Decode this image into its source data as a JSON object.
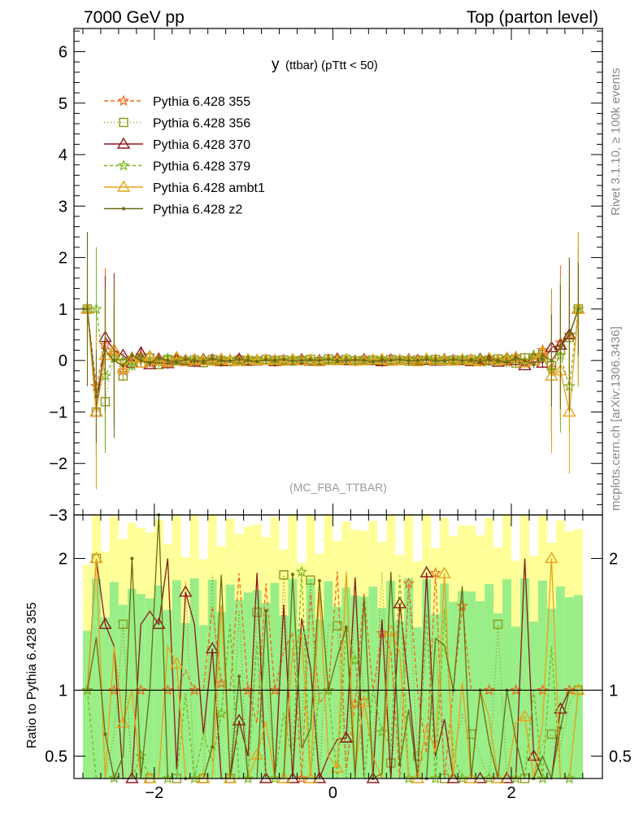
{
  "header": {
    "left_label": "7000 GeV pp",
    "right_label": "Top (parton level)"
  },
  "side_labels": {
    "rivet": "Rivet 3.1.10, ≥ 100k events",
    "mcplots": "mcplots.cern.ch [arXiv:1306.3436]"
  },
  "chart_data": [
    {
      "type": "line",
      "title": "y (ttbar) (pTtt < 50)",
      "title_main": "y",
      "title_sub": "(ttbar)  (pTtt < 50)",
      "watermark": "(MC_FBA_TTBAR)",
      "xlim": [
        -2.9,
        3.02
      ],
      "ylim": [
        -3,
        6.45
      ],
      "yticks": [
        -3,
        -2,
        -1,
        0,
        1,
        2,
        3,
        4,
        5,
        6
      ],
      "ytick_labels": [
        "−3",
        "−2",
        "−1",
        "0",
        "1",
        "2",
        "3",
        "4",
        "5",
        "6"
      ],
      "legend_position": "top-left",
      "x": [
        -2.75,
        -2.65,
        -2.55,
        -2.45,
        -2.35,
        -2.25,
        -2.15,
        -2.05,
        -1.95,
        -1.85,
        -1.75,
        -1.65,
        -1.55,
        -1.45,
        -1.35,
        -1.25,
        -1.15,
        -1.05,
        -0.95,
        -0.85,
        -0.75,
        -0.65,
        -0.55,
        -0.45,
        -0.35,
        -0.25,
        -0.15,
        -0.05,
        0.05,
        0.15,
        0.25,
        0.35,
        0.45,
        0.55,
        0.65,
        0.75,
        0.85,
        0.95,
        1.05,
        1.15,
        1.25,
        1.35,
        1.45,
        1.55,
        1.65,
        1.75,
        1.85,
        1.95,
        2.05,
        2.15,
        2.25,
        2.35,
        2.45,
        2.55,
        2.65,
        2.75
      ],
      "series": [
        {
          "name": "Pythia 6.428 355",
          "color": "#ee6a1a",
          "dash": "5,3",
          "marker": "star",
          "values": [
            1.0,
            -0.5,
            0.3,
            0.15,
            -0.2,
            0.05,
            0.1,
            -0.05,
            0.02,
            -0.03,
            0.05,
            0.0,
            -0.02,
            0.03,
            0.01,
            -0.01,
            0.02,
            0.0,
            -0.02,
            0.01,
            0.0,
            0.02,
            -0.01,
            0.0,
            0.01,
            0.0,
            -0.01,
            0.02,
            0.01,
            0.0,
            -0.01,
            0.01,
            0.02,
            0.0,
            -0.01,
            0.01,
            0.0,
            0.02,
            0.01,
            -0.01,
            0.0,
            0.02,
            0.01,
            0.03,
            -0.02,
            0.05,
            0.02,
            -0.03,
            0.08,
            -0.05,
            0.1,
            0.2,
            -0.15,
            0.35,
            0.5,
            1.0
          ]
        },
        {
          "name": "Pythia 6.428 356",
          "color": "#8a9a1a",
          "dash": "1,3",
          "marker": "square",
          "values": [
            1.0,
            -1.0,
            -0.8,
            0.1,
            -0.3,
            0.0,
            -0.05,
            0.05,
            -0.08,
            0.02,
            0.0,
            -0.02,
            0.01,
            -0.04,
            0.02,
            0.0,
            -0.02,
            0.01,
            0.0,
            -0.01,
            0.02,
            0.0,
            0.01,
            -0.01,
            0.0,
            0.02,
            -0.02,
            0.03,
            0.0,
            0.02,
            -0.01,
            0.0,
            0.01,
            -0.01,
            0.02,
            0.0,
            -0.01,
            0.01,
            0.0,
            0.02,
            -0.01,
            0.01,
            0.0,
            0.02,
            -0.01,
            0.01,
            0.03,
            0.0,
            -0.05,
            0.05,
            0.0,
            0.12,
            -0.1,
            0.2,
            0.45,
            1.0
          ]
        },
        {
          "name": "Pythia 6.428 370",
          "color": "#8b1a1a",
          "dash": "",
          "marker": "triangle",
          "values": [
            1.0,
            -1.0,
            0.45,
            0.2,
            0.1,
            -0.05,
            0.15,
            -0.08,
            0.03,
            -0.06,
            0.02,
            0.0,
            -0.03,
            0.02,
            0.01,
            -0.02,
            0.0,
            0.03,
            -0.01,
            0.0,
            0.01,
            -0.02,
            0.0,
            0.01,
            0.02,
            -0.01,
            0.0,
            0.01,
            0.03,
            0.0,
            -0.01,
            0.02,
            0.0,
            -0.02,
            0.01,
            0.0,
            0.02,
            0.0,
            0.01,
            -0.01,
            0.02,
            0.0,
            0.01,
            -0.02,
            0.03,
            0.0,
            -0.03,
            0.04,
            0.0,
            -0.1,
            0.05,
            -0.05,
            0.25,
            0.3,
            0.5,
            1.0
          ]
        },
        {
          "name": "Pythia 6.428 379",
          "color": "#7ab51e",
          "dash": "4,3",
          "marker": "star",
          "values": [
            1.0,
            1.0,
            -0.3,
            0.05,
            0.0,
            -0.1,
            0.05,
            0.0,
            -0.03,
            0.04,
            -0.02,
            0.01,
            0.0,
            0.02,
            -0.01,
            0.0,
            0.03,
            -0.01,
            0.0,
            0.02,
            0.0,
            -0.01,
            0.01,
            0.0,
            0.02,
            -0.01,
            0.0,
            0.02,
            0.0,
            0.01,
            0.0,
            -0.01,
            0.02,
            0.01,
            0.0,
            0.02,
            -0.01,
            0.0,
            0.01,
            0.03,
            0.0,
            0.01,
            0.02,
            0.0,
            0.04,
            -0.02,
            0.0,
            0.06,
            0.02,
            0.0,
            0.1,
            0.05,
            -0.2,
            0.1,
            -0.5,
            1.0
          ]
        },
        {
          "name": "Pythia 6.428 ambt1",
          "color": "#e8a21a",
          "dash": "",
          "marker": "triangle",
          "values": [
            1.0,
            -1.0,
            0.1,
            0.2,
            -0.15,
            0.05,
            -0.05,
            0.08,
            0.0,
            -0.04,
            0.06,
            -0.02,
            0.02,
            0.0,
            -0.01,
            0.03,
            0.0,
            -0.02,
            0.02,
            0.0,
            0.01,
            0.0,
            -0.01,
            0.02,
            0.0,
            0.01,
            -0.02,
            0.01,
            0.0,
            0.02,
            -0.01,
            0.0,
            0.01,
            0.02,
            -0.01,
            0.0,
            0.01,
            -0.02,
            0.03,
            0.0,
            0.01,
            -0.01,
            0.02,
            0.0,
            -0.02,
            0.04,
            0.0,
            0.02,
            0.06,
            -0.04,
            0.0,
            0.15,
            -0.3,
            -0.2,
            -1.0,
            1.0
          ]
        },
        {
          "name": "Pythia 6.428 z2",
          "color": "#6b6b12",
          "dash": "",
          "marker": "dot",
          "values": [
            1.0,
            -0.7,
            0.2,
            0.0,
            -0.1,
            0.1,
            0.0,
            -0.05,
            0.05,
            0.0,
            -0.03,
            0.02,
            0.0,
            -0.02,
            0.03,
            0.0,
            -0.01,
            0.02,
            0.0,
            -0.02,
            0.01,
            0.0,
            0.02,
            -0.01,
            0.0,
            0.01,
            0.0,
            0.02,
            -0.01,
            0.0,
            0.01,
            0.0,
            -0.02,
            0.01,
            0.0,
            0.02,
            -0.01,
            0.0,
            0.02,
            0.0,
            -0.01,
            0.02,
            0.0,
            0.01,
            -0.02,
            0.03,
            0.0,
            -0.03,
            0.05,
            0.0,
            -0.08,
            0.1,
            0.0,
            0.25,
            0.5,
            1.0
          ]
        }
      ]
    },
    {
      "type": "line",
      "ylabel": "Ratio to Pythia 6.428 355",
      "xlim": [
        -2.9,
        3.02
      ],
      "ylim": [
        0.33,
        2.33
      ],
      "xticks": [
        -2,
        0,
        2
      ],
      "xtick_labels": [
        "−2",
        "0",
        "2"
      ],
      "yticks": [
        0.5,
        1,
        2
      ],
      "ytick_labels": [
        "0.5",
        "1",
        "2"
      ],
      "reference_line": 1,
      "band_colors": {
        "outer": "#ffff99",
        "inner": "#99ee88"
      }
    }
  ]
}
